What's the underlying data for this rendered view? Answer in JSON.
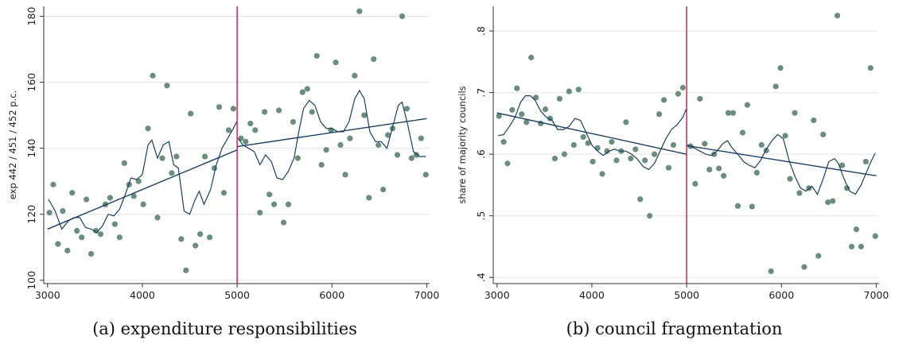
{
  "colors": {
    "points": "#6b8d7c",
    "fit_lines": "#1b3f63",
    "cutoff_line": "#b0103a",
    "axes": "#333333",
    "grid": "#e4e4e4"
  },
  "chart_data": [
    {
      "type": "scatter",
      "caption": "(a)  expenditure responsibilities",
      "xlabel": "",
      "ylabel": "exp 442 / 451 / 452 p.c.",
      "xlim": [
        2960,
        7030
      ],
      "ylim": [
        99,
        183
      ],
      "xticks": [
        3000,
        4000,
        5000,
        6000,
        7000
      ],
      "yticks": [
        100,
        120,
        140,
        160,
        180
      ],
      "ytick_labels": [
        "100",
        "120",
        "140",
        "160",
        "180"
      ],
      "grid": true,
      "cutoff_x": 5000,
      "points": [
        [
          3020,
          120.5
        ],
        [
          3060,
          129
        ],
        [
          3110,
          111
        ],
        [
          3160,
          121
        ],
        [
          3210,
          109
        ],
        [
          3260,
          126.5
        ],
        [
          3310,
          115
        ],
        [
          3360,
          113
        ],
        [
          3410,
          124.5
        ],
        [
          3460,
          108
        ],
        [
          3510,
          115
        ],
        [
          3560,
          114
        ],
        [
          3610,
          123
        ],
        [
          3660,
          125
        ],
        [
          3710,
          117
        ],
        [
          3760,
          113
        ],
        [
          3810,
          135.5
        ],
        [
          3860,
          129
        ],
        [
          3910,
          125.5
        ],
        [
          3960,
          130
        ],
        [
          4010,
          123
        ],
        [
          4060,
          146
        ],
        [
          4110,
          162
        ],
        [
          4160,
          119
        ],
        [
          4210,
          137
        ],
        [
          4260,
          159
        ],
        [
          4310,
          132.5
        ],
        [
          4360,
          137.5
        ],
        [
          4410,
          112.5
        ],
        [
          4460,
          103
        ],
        [
          4510,
          150.5
        ],
        [
          4560,
          110.5
        ],
        [
          4610,
          114
        ],
        [
          4660,
          137.5
        ],
        [
          4710,
          113
        ],
        [
          4760,
          134
        ],
        [
          4810,
          152.5
        ],
        [
          4860,
          126.5
        ],
        [
          4910,
          145.5
        ],
        [
          4960,
          152
        ],
        [
          5040,
          143
        ],
        [
          5090,
          142
        ],
        [
          5140,
          147.5
        ],
        [
          5190,
          145.5
        ],
        [
          5240,
          120.5
        ],
        [
          5290,
          151
        ],
        [
          5340,
          126
        ],
        [
          5390,
          123
        ],
        [
          5440,
          151.5
        ],
        [
          5490,
          117.5
        ],
        [
          5540,
          123
        ],
        [
          5590,
          148
        ],
        [
          5640,
          137
        ],
        [
          5690,
          157
        ],
        [
          5740,
          158
        ],
        [
          5790,
          151
        ],
        [
          5840,
          168
        ],
        [
          5890,
          135
        ],
        [
          5940,
          139.5
        ],
        [
          5990,
          145.5
        ],
        [
          6040,
          166
        ],
        [
          6090,
          141
        ],
        [
          6140,
          132
        ],
        [
          6190,
          143
        ],
        [
          6240,
          162
        ],
        [
          6290,
          181.5
        ],
        [
          6340,
          150
        ],
        [
          6390,
          125
        ],
        [
          6440,
          167
        ],
        [
          6490,
          141
        ],
        [
          6540,
          127.5
        ],
        [
          6590,
          144
        ],
        [
          6640,
          146
        ],
        [
          6690,
          138
        ],
        [
          6740,
          180
        ],
        [
          6790,
          152
        ],
        [
          6840,
          137
        ],
        [
          6890,
          138
        ],
        [
          6940,
          143
        ],
        [
          6990,
          132
        ]
      ],
      "linear_fit": [
        [
          3000,
          115.5
        ],
        [
          5000,
          139.5
        ],
        [
          5000,
          140.5
        ],
        [
          7000,
          149
        ]
      ],
      "local_fit": [
        [
          3010,
          124.5
        ],
        [
          3080,
          121
        ],
        [
          3150,
          115.5
        ],
        [
          3220,
          118
        ],
        [
          3280,
          119
        ],
        [
          3340,
          119
        ],
        [
          3400,
          116
        ],
        [
          3460,
          115.5
        ],
        [
          3520,
          114.5
        ],
        [
          3580,
          116.5
        ],
        [
          3640,
          120
        ],
        [
          3700,
          119.5
        ],
        [
          3760,
          121.5
        ],
        [
          3820,
          126
        ],
        [
          3880,
          131
        ],
        [
          3940,
          130.5
        ],
        [
          4000,
          132
        ],
        [
          4060,
          141
        ],
        [
          4100,
          142.5
        ],
        [
          4160,
          137
        ],
        [
          4220,
          141
        ],
        [
          4280,
          142
        ],
        [
          4330,
          135
        ],
        [
          4380,
          134
        ],
        [
          4440,
          121
        ],
        [
          4500,
          120
        ],
        [
          4550,
          124
        ],
        [
          4600,
          127
        ],
        [
          4650,
          123
        ],
        [
          4720,
          127.5
        ],
        [
          4780,
          135
        ],
        [
          4840,
          140
        ],
        [
          4900,
          143
        ],
        [
          4960,
          146
        ],
        [
          4995,
          148
        ],
        [
          5010,
          143
        ],
        [
          5060,
          141
        ],
        [
          5120,
          140
        ],
        [
          5180,
          139
        ],
        [
          5240,
          135
        ],
        [
          5300,
          138
        ],
        [
          5360,
          136
        ],
        [
          5420,
          131
        ],
        [
          5480,
          130.5
        ],
        [
          5540,
          133
        ],
        [
          5600,
          137
        ],
        [
          5650,
          145
        ],
        [
          5700,
          152
        ],
        [
          5760,
          154.5
        ],
        [
          5820,
          153
        ],
        [
          5880,
          148
        ],
        [
          5940,
          146
        ],
        [
          6000,
          146
        ],
        [
          6060,
          145
        ],
        [
          6120,
          145
        ],
        [
          6180,
          148
        ],
        [
          6240,
          155
        ],
        [
          6290,
          157.5
        ],
        [
          6340,
          155
        ],
        [
          6400,
          145
        ],
        [
          6460,
          142
        ],
        [
          6520,
          142
        ],
        [
          6580,
          140
        ],
        [
          6640,
          146.5
        ],
        [
          6700,
          153
        ],
        [
          6740,
          154
        ],
        [
          6800,
          147
        ],
        [
          6860,
          139
        ],
        [
          6920,
          137.5
        ],
        [
          6990,
          137.5
        ]
      ]
    },
    {
      "type": "scatter",
      "caption": "(b)  council fragmentation",
      "xlabel": "",
      "ylabel": "share of majority councils",
      "xlim": [
        2960,
        7030
      ],
      "ylim": [
        0.39,
        0.84
      ],
      "xticks": [
        3000,
        4000,
        5000,
        6000,
        7000
      ],
      "yticks": [
        0.4,
        0.5,
        0.6,
        0.7,
        0.8
      ],
      "ytick_labels": [
        ".4",
        ".5",
        ".6",
        ".7",
        ".8"
      ],
      "grid": true,
      "cutoff_x": 5000,
      "points": [
        [
          3020,
          0.662
        ],
        [
          3070,
          0.62
        ],
        [
          3110,
          0.585
        ],
        [
          3160,
          0.672
        ],
        [
          3210,
          0.707
        ],
        [
          3260,
          0.665
        ],
        [
          3310,
          0.652
        ],
        [
          3360,
          0.757
        ],
        [
          3410,
          0.692
        ],
        [
          3460,
          0.65
        ],
        [
          3510,
          0.673
        ],
        [
          3560,
          0.658
        ],
        [
          3610,
          0.593
        ],
        [
          3660,
          0.69
        ],
        [
          3710,
          0.6
        ],
        [
          3760,
          0.702
        ],
        [
          3810,
          0.615
        ],
        [
          3860,
          0.705
        ],
        [
          3910,
          0.628
        ],
        [
          3960,
          0.618
        ],
        [
          4010,
          0.588
        ],
        [
          4060,
          0.61
        ],
        [
          4110,
          0.568
        ],
        [
          4160,
          0.605
        ],
        [
          4210,
          0.62
        ],
        [
          4260,
          0.59
        ],
        [
          4310,
          0.605
        ],
        [
          4360,
          0.652
        ],
        [
          4410,
          0.593
        ],
        [
          4460,
          0.608
        ],
        [
          4510,
          0.527
        ],
        [
          4560,
          0.59
        ],
        [
          4610,
          0.5
        ],
        [
          4660,
          0.6
        ],
        [
          4710,
          0.665
        ],
        [
          4760,
          0.688
        ],
        [
          4810,
          0.578
        ],
        [
          4860,
          0.615
        ],
        [
          4910,
          0.698
        ],
        [
          4960,
          0.708
        ],
        [
          5040,
          0.613
        ],
        [
          5090,
          0.552
        ],
        [
          5140,
          0.69
        ],
        [
          5190,
          0.617
        ],
        [
          5240,
          0.575
        ],
        [
          5290,
          0.6
        ],
        [
          5340,
          0.577
        ],
        [
          5390,
          0.565
        ],
        [
          5440,
          0.667
        ],
        [
          5490,
          0.667
        ],
        [
          5540,
          0.516
        ],
        [
          5590,
          0.635
        ],
        [
          5640,
          0.68
        ],
        [
          5690,
          0.515
        ],
        [
          5740,
          0.57
        ],
        [
          5790,
          0.615
        ],
        [
          5840,
          0.606
        ],
        [
          5890,
          0.41
        ],
        [
          5940,
          0.71
        ],
        [
          5990,
          0.74
        ],
        [
          6040,
          0.63
        ],
        [
          6090,
          0.56
        ],
        [
          6140,
          0.667
        ],
        [
          6190,
          0.537
        ],
        [
          6240,
          0.417
        ],
        [
          6290,
          0.545
        ],
        [
          6340,
          0.655
        ],
        [
          6390,
          0.435
        ],
        [
          6440,
          0.632
        ],
        [
          6490,
          0.522
        ],
        [
          6540,
          0.524
        ],
        [
          6590,
          0.825
        ],
        [
          6640,
          0.582
        ],
        [
          6690,
          0.545
        ],
        [
          6740,
          0.45
        ],
        [
          6790,
          0.478
        ],
        [
          6840,
          0.45
        ],
        [
          6890,
          0.588
        ],
        [
          6940,
          0.74
        ],
        [
          6990,
          0.467
        ]
      ],
      "linear_fit": [
        [
          3000,
          0.667
        ],
        [
          5000,
          0.6
        ],
        [
          5000,
          0.614
        ],
        [
          7000,
          0.565
        ]
      ],
      "local_fit": [
        [
          3010,
          0.63
        ],
        [
          3070,
          0.632
        ],
        [
          3130,
          0.645
        ],
        [
          3190,
          0.66
        ],
        [
          3250,
          0.685
        ],
        [
          3300,
          0.695
        ],
        [
          3350,
          0.695
        ],
        [
          3400,
          0.688
        ],
        [
          3460,
          0.67
        ],
        [
          3520,
          0.66
        ],
        [
          3580,
          0.655
        ],
        [
          3640,
          0.64
        ],
        [
          3700,
          0.64
        ],
        [
          3760,
          0.645
        ],
        [
          3820,
          0.658
        ],
        [
          3880,
          0.655
        ],
        [
          3940,
          0.635
        ],
        [
          4000,
          0.615
        ],
        [
          4060,
          0.605
        ],
        [
          4120,
          0.598
        ],
        [
          4180,
          0.605
        ],
        [
          4240,
          0.608
        ],
        [
          4300,
          0.605
        ],
        [
          4360,
          0.605
        ],
        [
          4420,
          0.6
        ],
        [
          4480,
          0.592
        ],
        [
          4540,
          0.58
        ],
        [
          4600,
          0.575
        ],
        [
          4660,
          0.585
        ],
        [
          4720,
          0.605
        ],
        [
          4780,
          0.625
        ],
        [
          4840,
          0.64
        ],
        [
          4900,
          0.648
        ],
        [
          4960,
          0.66
        ],
        [
          4995,
          0.673
        ],
        [
          5010,
          0.615
        ],
        [
          5080,
          0.61
        ],
        [
          5140,
          0.605
        ],
        [
          5200,
          0.6
        ],
        [
          5260,
          0.598
        ],
        [
          5320,
          0.605
        ],
        [
          5380,
          0.617
        ],
        [
          5430,
          0.622
        ],
        [
          5480,
          0.61
        ],
        [
          5540,
          0.6
        ],
        [
          5600,
          0.588
        ],
        [
          5660,
          0.582
        ],
        [
          5720,
          0.578
        ],
        [
          5780,
          0.59
        ],
        [
          5840,
          0.608
        ],
        [
          5900,
          0.622
        ],
        [
          5960,
          0.632
        ],
        [
          6020,
          0.625
        ],
        [
          6080,
          0.59
        ],
        [
          6140,
          0.565
        ],
        [
          6200,
          0.545
        ],
        [
          6260,
          0.54
        ],
        [
          6320,
          0.548
        ],
        [
          6380,
          0.535
        ],
        [
          6440,
          0.56
        ],
        [
          6500,
          0.588
        ],
        [
          6560,
          0.593
        ],
        [
          6600,
          0.585
        ],
        [
          6660,
          0.56
        ],
        [
          6720,
          0.54
        ],
        [
          6780,
          0.535
        ],
        [
          6840,
          0.55
        ],
        [
          6900,
          0.572
        ],
        [
          6950,
          0.59
        ],
        [
          6990,
          0.602
        ]
      ]
    }
  ]
}
